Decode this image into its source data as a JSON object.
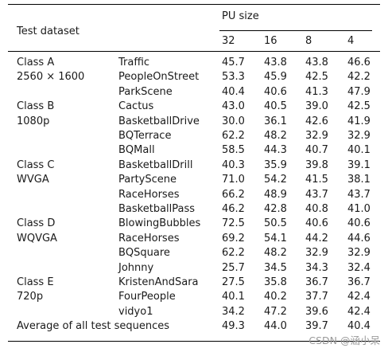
{
  "header": {
    "test_dataset": "Test dataset",
    "pu_size": "PU size",
    "pu_columns": [
      "32",
      "16",
      "8",
      "4"
    ]
  },
  "classes": [
    {
      "name": "Class A",
      "resolution": "2560 × 1600",
      "rows": [
        {
          "sequence": "Traffic",
          "values": [
            "45.7",
            "43.8",
            "43.8",
            "46.6"
          ]
        },
        {
          "sequence": "PeopleOnStreet",
          "values": [
            "53.3",
            "45.9",
            "42.5",
            "42.2"
          ]
        },
        {
          "sequence": "ParkScene",
          "values": [
            "40.4",
            "40.6",
            "41.3",
            "47.9"
          ]
        }
      ]
    },
    {
      "name": "Class B",
      "resolution": "1080p",
      "rows": [
        {
          "sequence": "Cactus",
          "values": [
            "43.0",
            "40.5",
            "39.0",
            "42.5"
          ]
        },
        {
          "sequence": "BasketballDrive",
          "values": [
            "30.0",
            "36.1",
            "42.6",
            "41.9"
          ]
        },
        {
          "sequence": "BQTerrace",
          "values": [
            "62.2",
            "48.2",
            "32.9",
            "32.9"
          ]
        },
        {
          "sequence": "BQMall",
          "values": [
            "58.5",
            "44.3",
            "40.7",
            "40.1"
          ]
        }
      ]
    },
    {
      "name": "Class C",
      "resolution": "WVGA",
      "rows": [
        {
          "sequence": "BasketballDrill",
          "values": [
            "40.3",
            "35.9",
            "39.8",
            "39.1"
          ]
        },
        {
          "sequence": "PartyScene",
          "values": [
            "71.0",
            "54.2",
            "41.5",
            "38.1"
          ]
        },
        {
          "sequence": "RaceHorses",
          "values": [
            "66.2",
            "48.9",
            "43.7",
            "43.7"
          ]
        },
        {
          "sequence": "BasketballPass",
          "values": [
            "46.2",
            "42.8",
            "40.8",
            "41.0"
          ]
        }
      ]
    },
    {
      "name": "Class D",
      "resolution": "WQVGA",
      "rows": [
        {
          "sequence": "BlowingBubbles",
          "values": [
            "72.5",
            "50.5",
            "40.6",
            "40.6"
          ]
        },
        {
          "sequence": "RaceHorses",
          "values": [
            "69.2",
            "54.1",
            "44.2",
            "44.6"
          ]
        },
        {
          "sequence": "BQSquare",
          "values": [
            "62.2",
            "48.2",
            "32.9",
            "32.9"
          ]
        },
        {
          "sequence": "Johnny",
          "values": [
            "25.7",
            "34.5",
            "34.3",
            "32.4"
          ]
        }
      ]
    },
    {
      "name": "Class E",
      "resolution": "720p",
      "rows": [
        {
          "sequence": "KristenAndSara",
          "values": [
            "27.5",
            "35.8",
            "36.7",
            "36.7"
          ]
        },
        {
          "sequence": "FourPeople",
          "values": [
            "40.1",
            "40.2",
            "37.7",
            "42.4"
          ]
        },
        {
          "sequence": "vidyo1",
          "values": [
            "34.2",
            "47.2",
            "39.6",
            "42.4"
          ]
        }
      ]
    }
  ],
  "average": {
    "label": "Average of all test sequences",
    "values": [
      "49.3",
      "44.0",
      "39.7",
      "40.4"
    ]
  },
  "watermark": "CSDN @涵小呆"
}
